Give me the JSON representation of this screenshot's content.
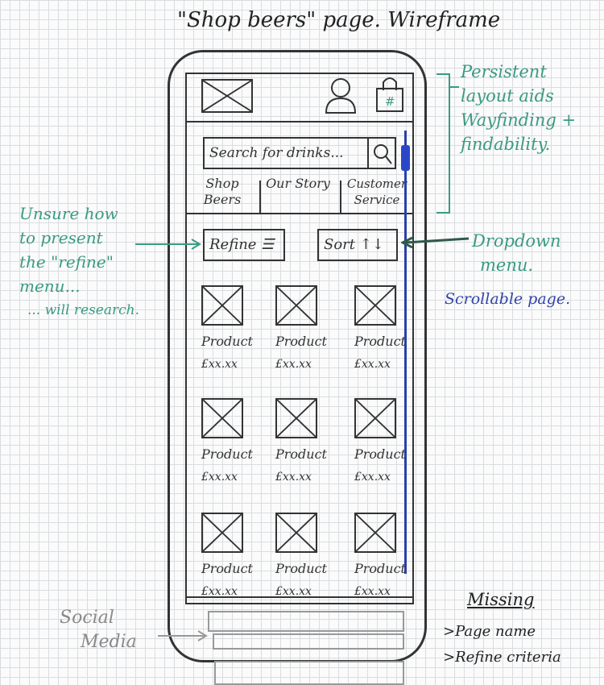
{
  "title": "\"Shop beers\" page. Wireframe",
  "search": {
    "placeholder": "Search for drinks..."
  },
  "nav": [
    {
      "label": "Shop Beers"
    },
    {
      "label": "Our Story"
    },
    {
      "label": "Customer Service"
    }
  ],
  "toolbar": {
    "refine_label": "Refine ☰",
    "sort_label": "Sort ↑↓"
  },
  "products": [
    {
      "name": "Product",
      "price": "£xx.xx"
    },
    {
      "name": "Product",
      "price": "£xx.xx"
    },
    {
      "name": "Product",
      "price": "£xx.xx"
    },
    {
      "name": "Product",
      "price": "£xx.xx"
    },
    {
      "name": "Product",
      "price": "£xx.xx"
    },
    {
      "name": "Product",
      "price": "£xx.xx"
    },
    {
      "name": "Product",
      "price": "£xx.xx"
    },
    {
      "name": "Product",
      "price": "£xx.xx"
    },
    {
      "name": "Product",
      "price": "£xx.xx"
    }
  ],
  "annotations": {
    "persistent": [
      "Persistent",
      "layout aids",
      "Wayfinding +",
      "findability."
    ],
    "unsure": [
      "Unsure how",
      "to present",
      "the \"refine\"",
      "menu...",
      "... will research."
    ],
    "dropdown": [
      "Dropdown",
      "menu."
    ],
    "scrollable": "Scrollable page.",
    "social": [
      "Social",
      "Media"
    ],
    "missing_title": "Missing",
    "missing_items": [
      ">Page name",
      ">Refine criteria"
    ]
  },
  "colors": {
    "green": "#3a9a82",
    "blue": "#2b47c9",
    "ink": "#333333",
    "pencil": "#999999"
  }
}
